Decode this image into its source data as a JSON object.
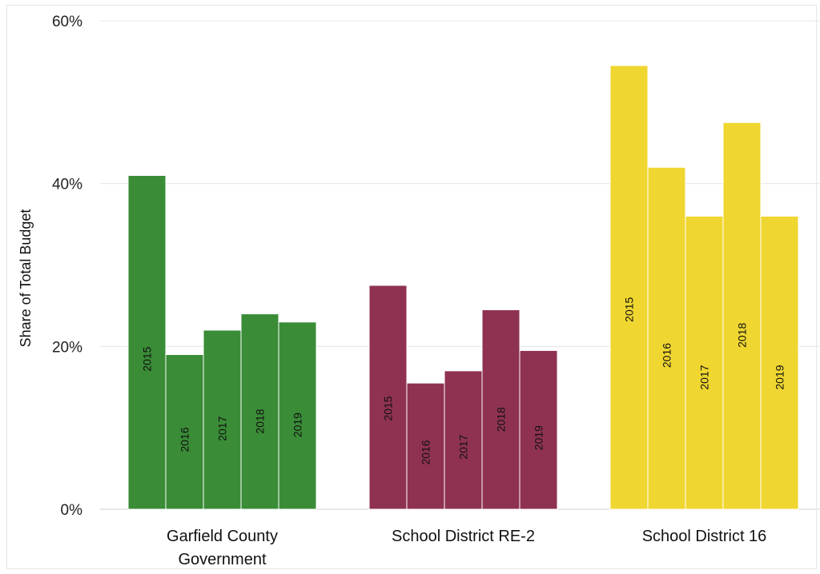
{
  "chart_data": {
    "type": "bar",
    "ylabel": "Share of Total Budget",
    "ylim": [
      0,
      60
    ],
    "yticks": [
      0,
      20,
      40,
      60
    ],
    "ytick_labels": [
      "0%",
      "20%",
      "40%",
      "60%"
    ],
    "grid": true,
    "groups": [
      {
        "label_lines": [
          "Garfield County",
          "Government"
        ],
        "color": "#3a8c37",
        "bars": [
          {
            "label": "2015",
            "value": 41
          },
          {
            "label": "2016",
            "value": 19
          },
          {
            "label": "2017",
            "value": 22
          },
          {
            "label": "2018",
            "value": 24
          },
          {
            "label": "2019",
            "value": 23
          }
        ]
      },
      {
        "label_lines": [
          "School District RE-2"
        ],
        "color": "#8f3252",
        "bars": [
          {
            "label": "2015",
            "value": 27.5
          },
          {
            "label": "2016",
            "value": 15.5
          },
          {
            "label": "2017",
            "value": 17
          },
          {
            "label": "2018",
            "value": 24.5
          },
          {
            "label": "2019",
            "value": 19.5
          }
        ]
      },
      {
        "label_lines": [
          "School District 16"
        ],
        "color": "#f0d630",
        "bars": [
          {
            "label": "2015",
            "value": 54.5
          },
          {
            "label": "2016",
            "value": 42
          },
          {
            "label": "2017",
            "value": 36
          },
          {
            "label": "2018",
            "value": 47.5
          },
          {
            "label": "2019",
            "value": 36
          }
        ]
      }
    ]
  }
}
